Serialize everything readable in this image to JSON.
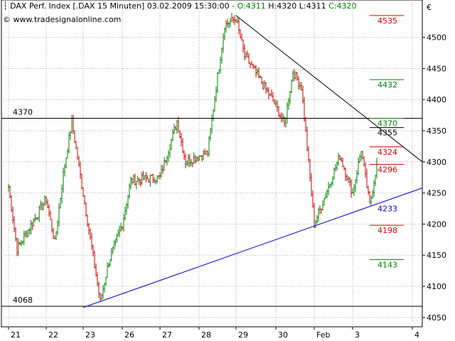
{
  "header": {
    "title_icon": "bar-chart-icon",
    "title_prefix": "DAX Perf. Index [.DAX  15 Minuten] 03.02.2009 15:30:00 - ",
    "open": "O:4311",
    "high": "H:4320",
    "low": "L:4311",
    "close": "C:4320",
    "site_icon": "copyright-icon",
    "site": "www.tradesignalonline.com"
  },
  "colors": {
    "up": "#008000",
    "down": "#cc0000",
    "support": "#0000cc",
    "resistance": "#000000",
    "level_red": "#dd0000",
    "level_green": "#008000",
    "level_blue": "#0000cc"
  },
  "chart_data": {
    "type": "bar",
    "subtype": "ohlc-candles",
    "currency_symbol": "€",
    "ylim": [
      4035,
      4560
    ],
    "y_ticks": [
      4050,
      4100,
      4150,
      4200,
      4250,
      4300,
      4350,
      4400,
      4450,
      4500
    ],
    "x_ticks": [
      "21",
      "22",
      "23",
      "26",
      "27",
      "28",
      "29",
      "30",
      "Feb",
      "3",
      "4"
    ],
    "horizontal_lines": [
      {
        "label": "4370",
        "value": 4370
      },
      {
        "label": "4068",
        "value": 4068
      }
    ],
    "level_labels": [
      {
        "label": "4535",
        "value": 4535,
        "color": "red"
      },
      {
        "label": "4432",
        "value": 4432,
        "color": "green"
      },
      {
        "label": "4370",
        "value": 4370,
        "color": "green"
      },
      {
        "label": "4355",
        "value": 4355,
        "color": "black"
      },
      {
        "label": "4324",
        "value": 4324,
        "color": "red"
      },
      {
        "label": "4296",
        "value": 4296,
        "color": "red"
      },
      {
        "label": "4233",
        "value": 4233,
        "color": "blue"
      },
      {
        "label": "4198",
        "value": 4198,
        "color": "red"
      },
      {
        "label": "4143",
        "value": 4143,
        "color": "green"
      }
    ],
    "trendlines": [
      {
        "name": "support",
        "from": {
          "x": "23",
          "y": 4066
        },
        "to": {
          "x": "4",
          "y": 4258
        }
      },
      {
        "name": "resistance",
        "from": {
          "x": "29",
          "y": 4535
        },
        "to": {
          "x": "4",
          "y": 4300
        }
      }
    ],
    "price_path": [
      [
        "21",
        4260
      ],
      [
        "21",
        4160
      ],
      [
        "22",
        4280
      ],
      [
        "22",
        4365
      ],
      [
        "22",
        4240
      ],
      [
        "22",
        4170
      ],
      [
        "23",
        4075
      ],
      [
        "23",
        4140
      ],
      [
        "26",
        4200
      ],
      [
        "26",
        4270
      ],
      [
        "27",
        4365
      ],
      [
        "27",
        4300
      ],
      [
        "27",
        4275
      ],
      [
        "28",
        4315
      ],
      [
        "28",
        4420
      ],
      [
        "28",
        4520
      ],
      [
        "29",
        4530
      ],
      [
        "29",
        4470
      ],
      [
        "29",
        4450
      ],
      [
        "30",
        4420
      ],
      [
        "30",
        4390
      ],
      [
        "30",
        4360
      ],
      [
        "30",
        4445
      ],
      [
        "Feb",
        4310
      ],
      [
        "Feb",
        4200
      ],
      [
        "Feb",
        4235
      ],
      [
        "3",
        4230
      ],
      [
        "3",
        4310
      ],
      [
        "3",
        4250
      ],
      [
        "3",
        4320
      ]
    ]
  }
}
